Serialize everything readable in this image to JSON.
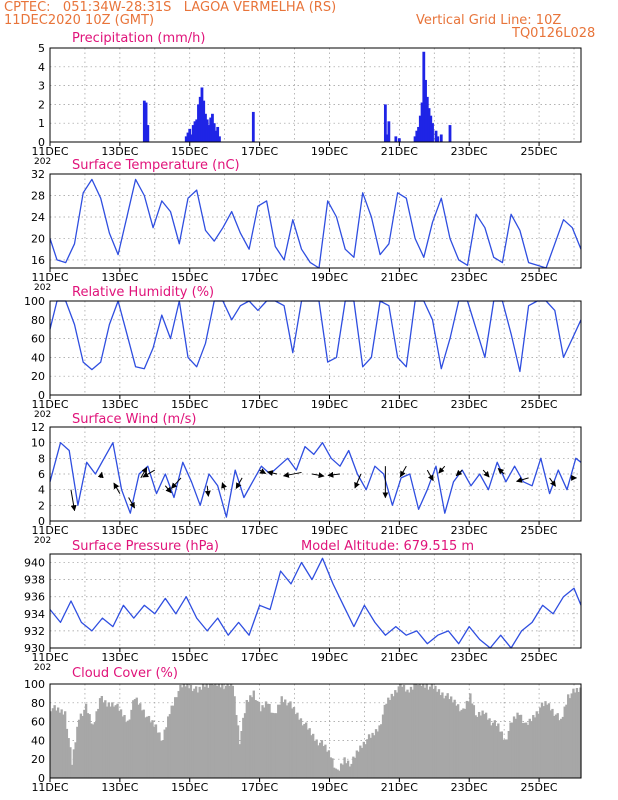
{
  "header": {
    "line1": "CPTEC:   051:34W-28:31S   LAGOA VERMELHA (RS)",
    "date": "11DEC2020 10Z (GMT)",
    "grid_line": "Vertical Grid Line: 10Z",
    "code": "TQ0126L028",
    "model_altitude": "Model Altitude: 679.515 m"
  },
  "colors": {
    "header": "#e8743a",
    "title": "#e0137a",
    "series": "#2f4ee0",
    "bar": "#1f24e6",
    "cloud": "#a7a7a7",
    "frame": "#000000"
  },
  "x_axis": {
    "labels": [
      "11DEC",
      "13DEC",
      "15DEC",
      "17DEC",
      "19DEC",
      "21DEC",
      "23DEC",
      "25DEC"
    ],
    "label_days": [
      0,
      2,
      4,
      6,
      8,
      10,
      12,
      14
    ],
    "range_days": [
      0,
      15.2
    ],
    "year_stub": "202",
    "grid": "dashed vertical at 10Z each day"
  },
  "chart_data": [
    {
      "id": "precip",
      "type": "bar",
      "title": "Precipitation (mm/h)",
      "ylim": [
        0,
        5
      ],
      "yticks": [
        0,
        1,
        2,
        3,
        4,
        5
      ],
      "x": [
        2.7,
        2.75,
        2.8,
        3.9,
        3.95,
        4.0,
        4.05,
        4.1,
        4.15,
        4.2,
        4.25,
        4.3,
        4.35,
        4.4,
        4.45,
        4.5,
        4.55,
        4.6,
        4.65,
        4.7,
        4.75,
        4.8,
        4.85,
        5.82,
        9.6,
        9.65,
        9.7,
        9.9,
        10.0,
        10.45,
        10.5,
        10.55,
        10.6,
        10.65,
        10.7,
        10.75,
        10.8,
        10.85,
        10.9,
        10.95,
        11.05,
        11.1,
        11.2,
        11.45
      ],
      "y": [
        2.2,
        2.1,
        0.9,
        0.3,
        0.5,
        0.7,
        0.4,
        0.9,
        1.1,
        1.2,
        2.0,
        2.4,
        2.9,
        2.2,
        1.5,
        1.2,
        0.9,
        1.3,
        1.5,
        1.0,
        0.6,
        0.8,
        0.3,
        1.6,
        2.0,
        0.4,
        1.1,
        0.3,
        0.2,
        0.3,
        0.6,
        0.8,
        1.4,
        2.1,
        4.8,
        3.3,
        2.4,
        1.8,
        1.4,
        1.0,
        0.6,
        0.3,
        0.4,
        0.9
      ]
    },
    {
      "id": "temp",
      "type": "line",
      "title": "Surface Temperature (nC)",
      "ylim": [
        14.5,
        32
      ],
      "yticks": [
        16,
        20,
        24,
        28,
        32
      ],
      "x": [
        0,
        0.2,
        0.45,
        0.7,
        0.95,
        1.2,
        1.45,
        1.7,
        1.95,
        2.2,
        2.45,
        2.7,
        2.95,
        3.2,
        3.45,
        3.7,
        3.95,
        4.2,
        4.45,
        4.7,
        4.95,
        5.2,
        5.45,
        5.7,
        5.95,
        6.2,
        6.45,
        6.7,
        6.95,
        7.2,
        7.45,
        7.7,
        7.95,
        8.2,
        8.45,
        8.7,
        8.95,
        9.2,
        9.45,
        9.7,
        9.95,
        10.2,
        10.45,
        10.7,
        10.95,
        11.2,
        11.45,
        11.7,
        11.95,
        12.2,
        12.45,
        12.7,
        12.95,
        13.2,
        13.45,
        13.7,
        13.95,
        14.2,
        14.45,
        14.7,
        14.95,
        15.2
      ],
      "y": [
        20,
        16,
        15.5,
        19,
        28.5,
        31,
        27.5,
        21,
        17,
        24,
        31,
        28,
        22,
        27,
        25,
        19,
        27.5,
        29,
        21.5,
        19.5,
        22,
        25,
        21,
        18,
        26,
        27,
        18.5,
        16,
        23.5,
        18,
        15.5,
        14.5,
        27,
        24,
        18,
        16.5,
        28.5,
        24,
        17,
        19,
        28.5,
        27.5,
        20,
        16.5,
        23,
        27.5,
        20,
        16,
        15,
        24.5,
        22,
        16.5,
        15.5,
        24.5,
        21.5,
        15.5,
        15,
        14.5,
        19,
        23.5,
        22,
        18
      ]
    },
    {
      "id": "rh",
      "type": "line",
      "title": "Relative Humidity (%)",
      "ylim": [
        0,
        100
      ],
      "yticks": [
        0,
        20,
        40,
        60,
        80,
        100
      ],
      "x": [
        0,
        0.2,
        0.45,
        0.7,
        0.95,
        1.2,
        1.45,
        1.7,
        1.95,
        2.2,
        2.45,
        2.7,
        2.95,
        3.2,
        3.45,
        3.7,
        3.95,
        4.2,
        4.45,
        4.7,
        4.95,
        5.2,
        5.45,
        5.7,
        5.95,
        6.2,
        6.45,
        6.7,
        6.95,
        7.2,
        7.45,
        7.7,
        7.95,
        8.2,
        8.45,
        8.7,
        8.95,
        9.2,
        9.45,
        9.7,
        9.95,
        10.2,
        10.45,
        10.7,
        10.95,
        11.2,
        11.45,
        11.7,
        11.95,
        12.2,
        12.45,
        12.7,
        12.95,
        13.2,
        13.45,
        13.7,
        13.95,
        14.2,
        14.45,
        14.7,
        14.95,
        15.2
      ],
      "y": [
        70,
        100,
        100,
        75,
        35,
        27,
        35,
        75,
        100,
        65,
        30,
        28,
        50,
        85,
        60,
        100,
        40,
        30,
        55,
        100,
        100,
        80,
        95,
        100,
        90,
        100,
        100,
        95,
        45,
        100,
        100,
        100,
        35,
        40,
        100,
        100,
        30,
        40,
        100,
        95,
        40,
        30,
        100,
        100,
        80,
        28,
        60,
        100,
        100,
        70,
        40,
        100,
        100,
        65,
        25,
        95,
        100,
        100,
        90,
        40,
        60,
        80
      ]
    },
    {
      "id": "wind",
      "type": "line",
      "title": "Surface Wind (m/s)",
      "ylim": [
        0,
        12
      ],
      "yticks": [
        0,
        2,
        4,
        6,
        8,
        10,
        12
      ],
      "x": [
        0,
        0.3,
        0.55,
        0.8,
        1.05,
        1.3,
        1.55,
        1.8,
        2.05,
        2.3,
        2.55,
        2.8,
        3.05,
        3.3,
        3.55,
        3.8,
        4.05,
        4.3,
        4.55,
        4.8,
        5.05,
        5.3,
        5.55,
        5.8,
        6.05,
        6.3,
        6.55,
        6.8,
        7.05,
        7.3,
        7.55,
        7.8,
        8.05,
        8.3,
        8.55,
        8.8,
        9.05,
        9.3,
        9.55,
        9.8,
        10.05,
        10.3,
        10.55,
        10.8,
        11.05,
        11.3,
        11.55,
        11.8,
        12.05,
        12.3,
        12.55,
        12.8,
        13.05,
        13.3,
        13.55,
        13.8,
        14.05,
        14.3,
        14.55,
        14.8,
        15.05,
        15.2
      ],
      "y": [
        5,
        10,
        9,
        2,
        7.5,
        6,
        8,
        10,
        4,
        1,
        6,
        7,
        3.5,
        6,
        3,
        7.5,
        5,
        2,
        6,
        4.5,
        0.5,
        6.5,
        3,
        5,
        7,
        6,
        7,
        8,
        6.5,
        9.5,
        8.5,
        10,
        8,
        7,
        9,
        6,
        4,
        7,
        6,
        2,
        5.5,
        6,
        1.5,
        4,
        7,
        1,
        5,
        6.5,
        4.5,
        6,
        4,
        7.5,
        5,
        7,
        5,
        4.5,
        8,
        3.5,
        6.5,
        4,
        8,
        7.5
      ],
      "vectors": [
        {
          "x": 0.6,
          "y": 4.0,
          "u": 0.3,
          "v": -3.0
        },
        {
          "x": 1.45,
          "y": 5.5,
          "u": 0.1,
          "v": 0.8
        },
        {
          "x": 2.0,
          "y": 3.5,
          "u": -0.5,
          "v": 1.5
        },
        {
          "x": 2.25,
          "y": 3.0,
          "u": 0.5,
          "v": -1.5
        },
        {
          "x": 2.6,
          "y": 5.5,
          "u": 0.5,
          "v": 1.5
        },
        {
          "x": 3.0,
          "y": 6.5,
          "u": -1.0,
          "v": -1.0
        },
        {
          "x": 3.3,
          "y": 4.5,
          "u": 0.5,
          "v": -1.0
        },
        {
          "x": 3.75,
          "y": 5.5,
          "u": -0.8,
          "v": -1.5
        },
        {
          "x": 4.5,
          "y": 4.5,
          "u": 0.1,
          "v": -1.5
        },
        {
          "x": 5.0,
          "y": 4.0,
          "u": -0.2,
          "v": 1.0
        },
        {
          "x": 5.5,
          "y": 5.5,
          "u": -0.5,
          "v": -1.5
        },
        {
          "x": 6.0,
          "y": 6.5,
          "u": 0.5,
          "v": -0.5
        },
        {
          "x": 6.5,
          "y": 6.0,
          "u": -0.8,
          "v": 0.3
        },
        {
          "x": 7.2,
          "y": 6.2,
          "u": -1.5,
          "v": -0.5
        },
        {
          "x": 7.5,
          "y": 6.0,
          "u": 1.0,
          "v": -0.3
        },
        {
          "x": 8.3,
          "y": 6.0,
          "u": -1.0,
          "v": -0.2
        },
        {
          "x": 8.9,
          "y": 6.0,
          "u": -0.5,
          "v": -2.0
        },
        {
          "x": 9.6,
          "y": 7.0,
          "u": 0.0,
          "v": -4.5
        },
        {
          "x": 10.2,
          "y": 7.0,
          "u": -0.5,
          "v": -1.5
        },
        {
          "x": 10.8,
          "y": 6.5,
          "u": 0.5,
          "v": -1.5
        },
        {
          "x": 11.3,
          "y": 7.0,
          "u": -0.5,
          "v": -1.0
        },
        {
          "x": 11.8,
          "y": 6.5,
          "u": -0.5,
          "v": -0.8
        },
        {
          "x": 12.4,
          "y": 6.5,
          "u": 0.5,
          "v": -1.0
        },
        {
          "x": 13.0,
          "y": 6.0,
          "u": -0.5,
          "v": 0.8
        },
        {
          "x": 13.7,
          "y": 5.5,
          "u": -1.0,
          "v": -0.5
        },
        {
          "x": 14.3,
          "y": 5.5,
          "u": 0.5,
          "v": -1.2
        },
        {
          "x": 14.9,
          "y": 5.5,
          "u": 0.5,
          "v": 0.0
        }
      ]
    },
    {
      "id": "pressure",
      "type": "line",
      "title": "Surface Pressure (hPa)",
      "ylim": [
        930,
        941
      ],
      "yticks": [
        930,
        932,
        934,
        936,
        938,
        940
      ],
      "x": [
        0,
        0.3,
        0.6,
        0.9,
        1.2,
        1.5,
        1.8,
        2.1,
        2.4,
        2.7,
        3.0,
        3.3,
        3.6,
        3.9,
        4.2,
        4.5,
        4.8,
        5.1,
        5.4,
        5.7,
        6.0,
        6.3,
        6.6,
        6.9,
        7.2,
        7.5,
        7.8,
        8.1,
        8.4,
        8.7,
        9.0,
        9.3,
        9.6,
        9.9,
        10.2,
        10.5,
        10.8,
        11.1,
        11.4,
        11.7,
        12.0,
        12.3,
        12.6,
        12.9,
        13.2,
        13.5,
        13.8,
        14.1,
        14.4,
        14.7,
        15.0,
        15.2
      ],
      "y": [
        934.5,
        933,
        935.5,
        933,
        932,
        933.5,
        932.5,
        935,
        933.5,
        935,
        934,
        935.8,
        934,
        936,
        933.5,
        932,
        933.5,
        931.5,
        933,
        931.5,
        935,
        934.5,
        939,
        937.5,
        940,
        938,
        940.5,
        937.5,
        935,
        932.5,
        935,
        933,
        931.5,
        932.5,
        931.5,
        932,
        930.5,
        931.5,
        932,
        930.5,
        932.5,
        931,
        930,
        931.5,
        930,
        932,
        933,
        935,
        934,
        936,
        937,
        935
      ]
    },
    {
      "id": "cloud",
      "type": "area",
      "title": "Cloud Cover (%)",
      "ylim": [
        0,
        100
      ],
      "yticks": [
        0,
        20,
        40,
        60,
        80,
        100
      ],
      "x": [
        0,
        0.2,
        0.4,
        0.6,
        0.8,
        1.0,
        1.2,
        1.4,
        1.6,
        1.8,
        2.0,
        2.2,
        2.4,
        2.6,
        2.8,
        3.0,
        3.2,
        3.4,
        3.6,
        3.8,
        4.0,
        4.2,
        4.4,
        4.6,
        4.8,
        5.0,
        5.2,
        5.4,
        5.6,
        5.8,
        6.0,
        6.2,
        6.4,
        6.6,
        6.8,
        7.0,
        7.2,
        7.4,
        7.6,
        7.8,
        8.0,
        8.2,
        8.4,
        8.6,
        8.8,
        9.0,
        9.2,
        9.4,
        9.6,
        9.8,
        10.0,
        10.2,
        10.4,
        10.6,
        10.8,
        11.0,
        11.2,
        11.4,
        11.6,
        11.8,
        12.0,
        12.2,
        12.4,
        12.6,
        12.8,
        13.0,
        13.2,
        13.4,
        13.6,
        13.8,
        14.0,
        14.2,
        14.4,
        14.6,
        14.8,
        15.0,
        15.2
      ],
      "y": [
        75,
        72,
        70,
        15,
        65,
        75,
        55,
        85,
        78,
        80,
        70,
        60,
        85,
        75,
        62,
        55,
        40,
        70,
        90,
        100,
        98,
        92,
        100,
        100,
        100,
        98,
        100,
        40,
        80,
        92,
        72,
        82,
        65,
        85,
        80,
        70,
        60,
        50,
        40,
        35,
        25,
        5,
        20,
        15,
        30,
        40,
        45,
        55,
        80,
        90,
        100,
        92,
        100,
        100,
        98,
        95,
        90,
        85,
        80,
        70,
        88,
        65,
        70,
        60,
        55,
        40,
        60,
        70,
        55,
        65,
        75,
        80,
        70,
        60,
        88,
        92,
        95
      ]
    }
  ]
}
